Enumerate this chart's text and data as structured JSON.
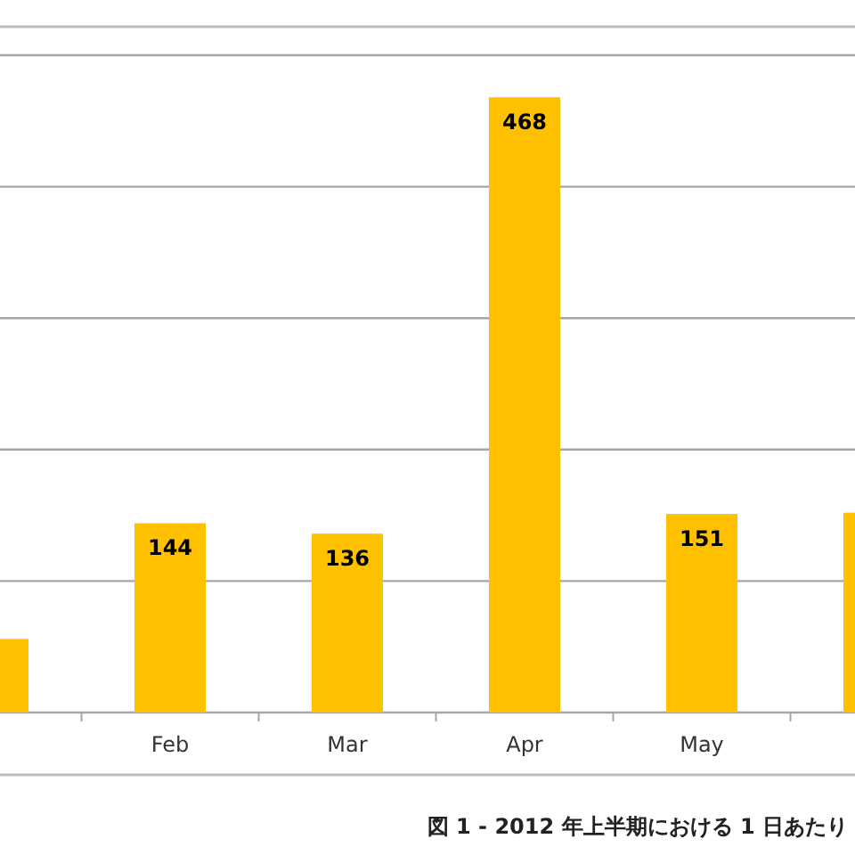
{
  "chart_data": {
    "type": "bar",
    "title": "図 1 - 2012 年上半期における 1 日あたり",
    "categories": [
      null,
      "Feb",
      "Mar",
      "Apr",
      "May",
      null
    ],
    "values": [
      56,
      144,
      136,
      468,
      151,
      152
    ],
    "value_labels": [
      null,
      "144",
      "136",
      "468",
      "151",
      null
    ],
    "color": "#ffc000",
    "ylim": [
      0,
      500
    ],
    "yticks": [
      {
        "value": 0,
        "label": null
      },
      {
        "value": 100,
        "label": null
      },
      {
        "value": 200,
        "label": null
      },
      {
        "value": 300,
        "label": null
      },
      {
        "value": 400,
        "label": null
      },
      {
        "value": 500,
        "label": null
      }
    ],
    "grid": "y"
  }
}
